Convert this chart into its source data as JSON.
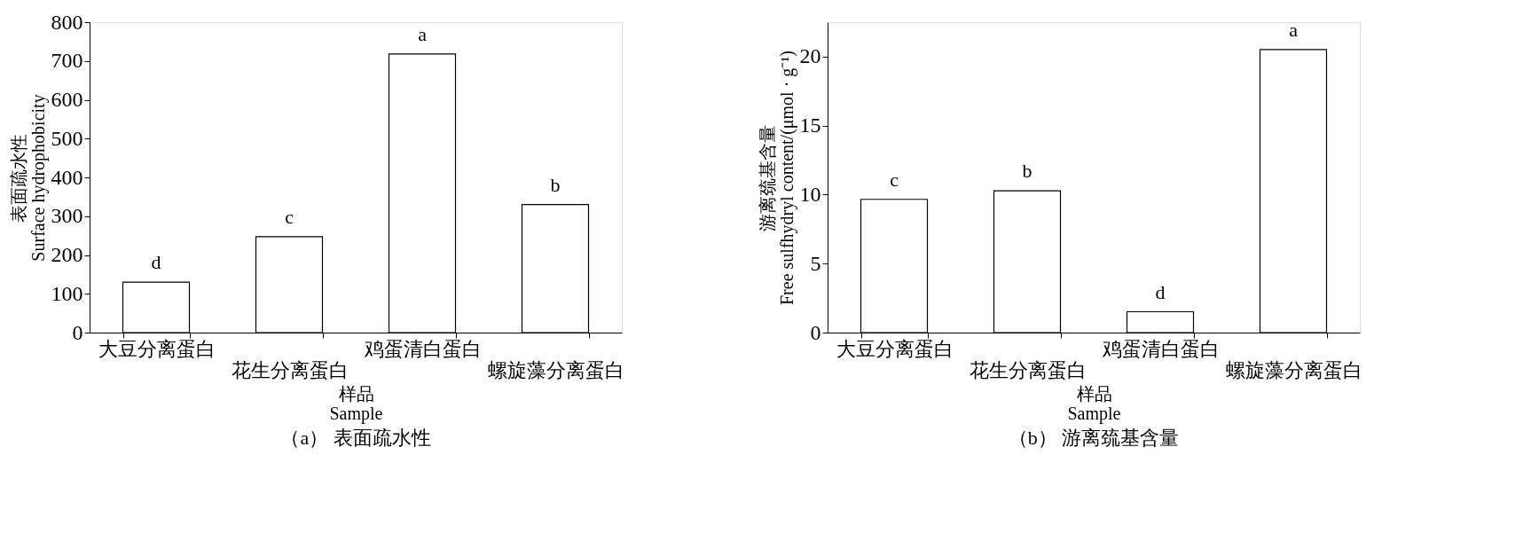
{
  "chart_data": [
    {
      "type": "bar",
      "title": "（a） 表面疏水性",
      "xlabel": "样品\nSample",
      "ylabel": "表面疏水性\nSurface hydrophobicity",
      "categories": [
        "大豆分离蛋白",
        "花生分离蛋白",
        "鸡蛋清白蛋白",
        "螺旋藻分离蛋白"
      ],
      "values": [
        130,
        247,
        718,
        330
      ],
      "color": "#ffffff",
      "ylim": [
        0,
        800
      ],
      "yticks": [
        0,
        100,
        200,
        300,
        400,
        500,
        600,
        700,
        800
      ],
      "grid": false,
      "annotations": [
        {
          "text": "d",
          "x": "大豆分离蛋白",
          "y": 130
        },
        {
          "text": "c",
          "x": "花生分离蛋白",
          "y": 247
        },
        {
          "text": "a",
          "x": "鸡蛋清白蛋白",
          "y": 718
        },
        {
          "text": "b",
          "x": "螺旋藻分离蛋白",
          "y": 330
        }
      ]
    },
    {
      "type": "bar",
      "title": "（b） 游离巯基含量",
      "xlabel": "样品\nSample",
      "ylabel": "游离巯基含量\nFree sulfhydryl content/(μmol · g⁻¹)",
      "categories": [
        "大豆分离蛋白",
        "花生分离蛋白",
        "鸡蛋清白蛋白",
        "螺旋藻分离蛋白"
      ],
      "values": [
        9.66,
        10.28,
        1.51,
        20.51
      ],
      "color": "#ffffff",
      "ylim": [
        0,
        22.5
      ],
      "yticks": [
        0,
        5,
        10,
        15,
        20
      ],
      "grid": false,
      "annotations": [
        {
          "text": "c",
          "x": "大豆分离蛋白",
          "y": 9.66
        },
        {
          "text": "b",
          "x": "花生分离蛋白",
          "y": 10.28
        },
        {
          "text": "d",
          "x": "鸡蛋清白蛋白",
          "y": 1.51
        },
        {
          "text": "a",
          "x": "螺旋藻分离蛋白",
          "y": 20.51
        }
      ]
    }
  ]
}
